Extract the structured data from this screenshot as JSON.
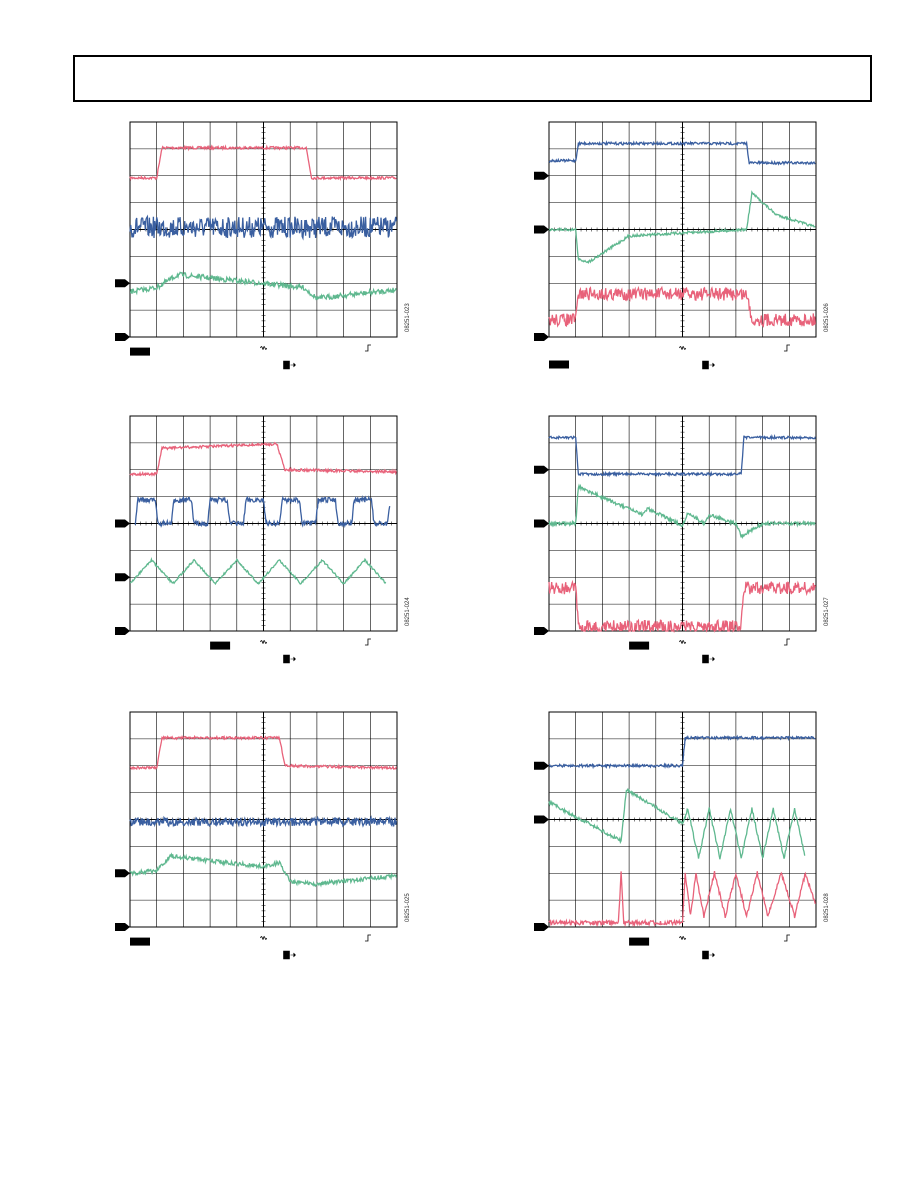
{
  "figures": [
    {
      "id": "08251-023"
    },
    {
      "id": "08251-026"
    },
    {
      "id": "08251-024"
    },
    {
      "id": "08251-027"
    },
    {
      "id": "08251-025"
    },
    {
      "id": "08251-028"
    }
  ]
}
